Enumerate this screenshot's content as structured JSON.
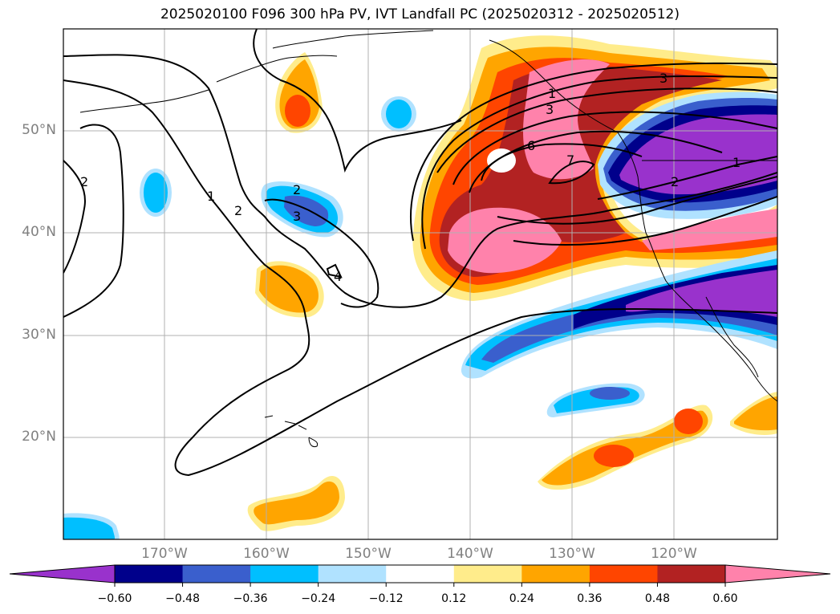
{
  "title": "2025020100 F096 300 hPa PV, IVT Landfall PC (2025020312 - 2025020512)",
  "map": {
    "lon_labels": [
      "170°W",
      "160°W",
      "150°W",
      "140°W",
      "130°W",
      "120°W"
    ],
    "lat_labels": [
      "50°N",
      "40°N",
      "30°N",
      "20°N"
    ],
    "pv_contour_labels": [
      "1",
      "2",
      "3",
      "4",
      "6",
      "7",
      "3",
      "2",
      "1",
      "2",
      "1",
      "2",
      "3"
    ]
  },
  "colorbar": {
    "ticks": [
      "−0.60",
      "−0.48",
      "−0.36",
      "−0.24",
      "−0.12",
      "0.12",
      "0.24",
      "0.36",
      "0.48",
      "0.60"
    ],
    "colors": [
      "#9932cc",
      "#00008b",
      "#3a5fcd",
      "#00bfff",
      "#b0e2ff",
      "#ffffff",
      "#ffec8b",
      "#ffa500",
      "#ff4500",
      "#b22222",
      "#ff82ab"
    ]
  }
}
